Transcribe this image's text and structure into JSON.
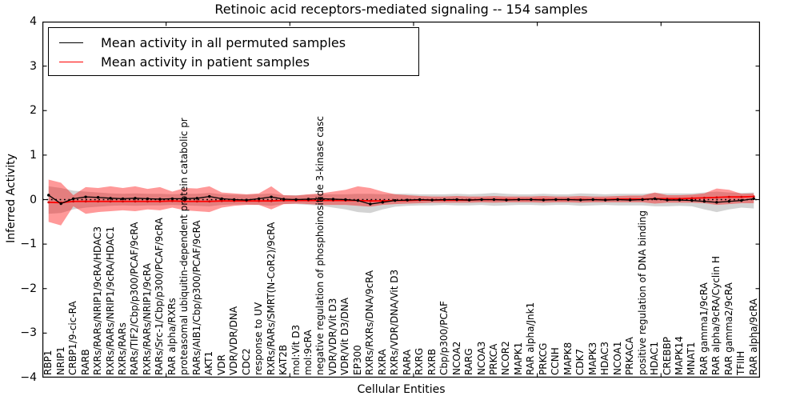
{
  "chart_data": {
    "type": "line",
    "title": "Retinoic acid receptors-mediated signaling -- 154 samples",
    "xlabel": "Cellular Entities",
    "ylabel": "Inferred Activity",
    "ylim": [
      -4,
      4
    ],
    "yticks": [
      4,
      3,
      2,
      1,
      0,
      -1,
      -2,
      -3,
      -4
    ],
    "xtick_positions": [
      10,
      20,
      30,
      40,
      50
    ],
    "grid": false,
    "legend_position": "upper left",
    "zero_line": {
      "style": "dotted",
      "color": "#000000"
    },
    "categories": [
      "RBP1",
      "NRIP1",
      "CRBP1/9-cic-RA",
      "RARB",
      "RXRs/RARs/NRIP1/9cRA/HDAC3",
      "RXRs/RARs/NRIP1/9cRA/HDAC1",
      "RXRs/RARs",
      "RARs/TIF2/Cbp/p300/PCAF/9cRA",
      "RXRs/RARs/NRIP1/9cRA",
      "RARs/Src-1/Cbp/p300/PCAF/9cRA",
      "RAR alpha/RXRs",
      "proteasomal ubiquitin-dependent protein catabolic pr",
      "RARs/AIB1/Cbp/p300/PCAF/9cRA",
      "AKT1",
      "VDR",
      "VDR/VDR/DNA",
      "CDC2",
      "response to UV",
      "RXRs/RARs/SMRT(N-CoR2)/9cRA",
      "KAT2B",
      "mol:Vit D3",
      "mol:9cRA",
      "negative regulation of phosphoinositide 3-kinase casc",
      "VDR/VDR/Vit D3",
      "VDR/Vit D3/DNA",
      "EP300",
      "RXRs/RXRs/DNA/9cRA",
      "RXRA",
      "RXRs/VDR/DNA/Vit D3",
      "RARA",
      "RXRG",
      "RXRB",
      "Cbp/p300/PCAF",
      "NCOA2",
      "RARG",
      "NCOA3",
      "PRKCA",
      "NCOR2",
      "MAPK1",
      "RAR alpha/Jnk1",
      "PRKCG",
      "CCNH",
      "MAPK8",
      "CDK7",
      "MAPK3",
      "HDAC3",
      "NCOA1",
      "PRKACA",
      "positive regulation of DNA binding",
      "HDAC1",
      "CREBBP",
      "MAPK14",
      "MNAT1",
      "RAR gamma1/9cRA",
      "RAR alpha/9cRA/Cyclin H",
      "RAR gamma2/9cRA",
      "TFIIH",
      "RAR alpha/9cRA"
    ],
    "series": [
      {
        "name": "Mean activity in all permuted samples",
        "color": "#000000",
        "values": [
          0.1,
          -0.09,
          0.02,
          0.06,
          0.05,
          0.03,
          0.02,
          0.03,
          0.02,
          0.01,
          0.02,
          0.02,
          0.03,
          0.07,
          0.02,
          0.0,
          -0.01,
          0.02,
          0.06,
          0.01,
          0.0,
          0.01,
          0.02,
          0.01,
          0.0,
          -0.02,
          -0.1,
          -0.06,
          -0.02,
          -0.01,
          0.0,
          -0.01,
          0.0,
          0.0,
          -0.01,
          0.0,
          0.0,
          -0.01,
          0.0,
          0.0,
          -0.01,
          0.0,
          0.0,
          -0.01,
          0.0,
          -0.01,
          0.0,
          -0.01,
          0.0,
          0.02,
          -0.01,
          -0.01,
          -0.02,
          -0.04,
          -0.06,
          -0.04,
          -0.02,
          0.02
        ]
      },
      {
        "name": "Mean activity in patient samples",
        "color": "#ff0000",
        "values": [
          -0.06,
          -0.07,
          -0.04,
          -0.04,
          -0.04,
          -0.04,
          -0.04,
          -0.04,
          -0.04,
          -0.04,
          -0.03,
          -0.04,
          -0.04,
          -0.04,
          -0.03,
          -0.03,
          -0.03,
          -0.03,
          -0.03,
          -0.02,
          -0.02,
          -0.02,
          -0.02,
          -0.02,
          -0.02,
          -0.02,
          -0.03,
          -0.03,
          -0.02,
          -0.02,
          -0.01,
          -0.01,
          -0.01,
          -0.01,
          -0.01,
          0.0,
          0.0,
          0.0,
          0.0,
          0.0,
          0.0,
          0.0,
          0.0,
          0.0,
          0.0,
          0.0,
          0.01,
          0.01,
          0.01,
          0.02,
          0.02,
          0.02,
          0.03,
          0.04,
          0.05,
          0.06,
          0.06,
          0.07
        ]
      }
    ],
    "bands": [
      {
        "name": "permuted samples range",
        "color": "#808080",
        "opacity": 0.35,
        "upper": [
          0.3,
          0.26,
          0.2,
          0.18,
          0.16,
          0.14,
          0.13,
          0.14,
          0.13,
          0.13,
          0.12,
          0.13,
          0.13,
          0.15,
          0.12,
          0.11,
          0.11,
          0.12,
          0.14,
          0.1,
          0.1,
          0.11,
          0.12,
          0.12,
          0.12,
          0.13,
          0.13,
          0.12,
          0.13,
          0.13,
          0.12,
          0.12,
          0.12,
          0.13,
          0.12,
          0.13,
          0.15,
          0.13,
          0.12,
          0.12,
          0.13,
          0.12,
          0.12,
          0.14,
          0.13,
          0.12,
          0.13,
          0.13,
          0.13,
          0.15,
          0.14,
          0.14,
          0.14,
          0.16,
          0.18,
          0.16,
          0.15,
          0.16
        ],
        "lower": [
          -0.32,
          -0.3,
          -0.22,
          -0.18,
          -0.16,
          -0.14,
          -0.13,
          -0.14,
          -0.13,
          -0.13,
          -0.12,
          -0.13,
          -0.14,
          -0.15,
          -0.12,
          -0.11,
          -0.11,
          -0.12,
          -0.14,
          -0.1,
          -0.1,
          -0.12,
          -0.14,
          -0.18,
          -0.22,
          -0.28,
          -0.3,
          -0.22,
          -0.16,
          -0.14,
          -0.13,
          -0.13,
          -0.12,
          -0.13,
          -0.13,
          -0.12,
          -0.14,
          -0.13,
          -0.12,
          -0.12,
          -0.13,
          -0.12,
          -0.12,
          -0.14,
          -0.13,
          -0.12,
          -0.13,
          -0.13,
          -0.13,
          -0.15,
          -0.15,
          -0.14,
          -0.15,
          -0.22,
          -0.28,
          -0.22,
          -0.18,
          -0.2
        ]
      },
      {
        "name": "patient samples range",
        "color": "#ff0000",
        "opacity": 0.4,
        "upper": [
          0.45,
          0.38,
          0.1,
          0.28,
          0.26,
          0.3,
          0.26,
          0.3,
          0.24,
          0.28,
          0.18,
          0.26,
          0.25,
          0.3,
          0.16,
          0.14,
          0.12,
          0.14,
          0.3,
          0.1,
          0.09,
          0.12,
          0.14,
          0.18,
          0.22,
          0.3,
          0.26,
          0.18,
          0.12,
          0.1,
          0.08,
          0.07,
          0.07,
          0.08,
          0.07,
          0.07,
          0.08,
          0.07,
          0.07,
          0.07,
          0.08,
          0.07,
          0.07,
          0.08,
          0.07,
          0.07,
          0.08,
          0.09,
          0.09,
          0.16,
          0.1,
          0.1,
          0.11,
          0.14,
          0.25,
          0.22,
          0.13,
          0.14
        ],
        "lower": [
          -0.5,
          -0.58,
          -0.15,
          -0.32,
          -0.28,
          -0.26,
          -0.24,
          -0.26,
          -0.22,
          -0.24,
          -0.18,
          -0.24,
          -0.26,
          -0.28,
          -0.18,
          -0.14,
          -0.12,
          -0.12,
          -0.22,
          -0.1,
          -0.09,
          -0.1,
          -0.12,
          -0.12,
          -0.12,
          -0.14,
          -0.16,
          -0.12,
          -0.1,
          -0.09,
          -0.08,
          -0.07,
          -0.07,
          -0.07,
          -0.07,
          -0.06,
          -0.07,
          -0.06,
          -0.06,
          -0.06,
          -0.07,
          -0.06,
          -0.06,
          -0.07,
          -0.06,
          -0.06,
          -0.06,
          -0.06,
          -0.06,
          -0.09,
          -0.07,
          -0.07,
          -0.07,
          -0.08,
          -0.12,
          -0.1,
          -0.08,
          -0.08
        ]
      }
    ]
  }
}
